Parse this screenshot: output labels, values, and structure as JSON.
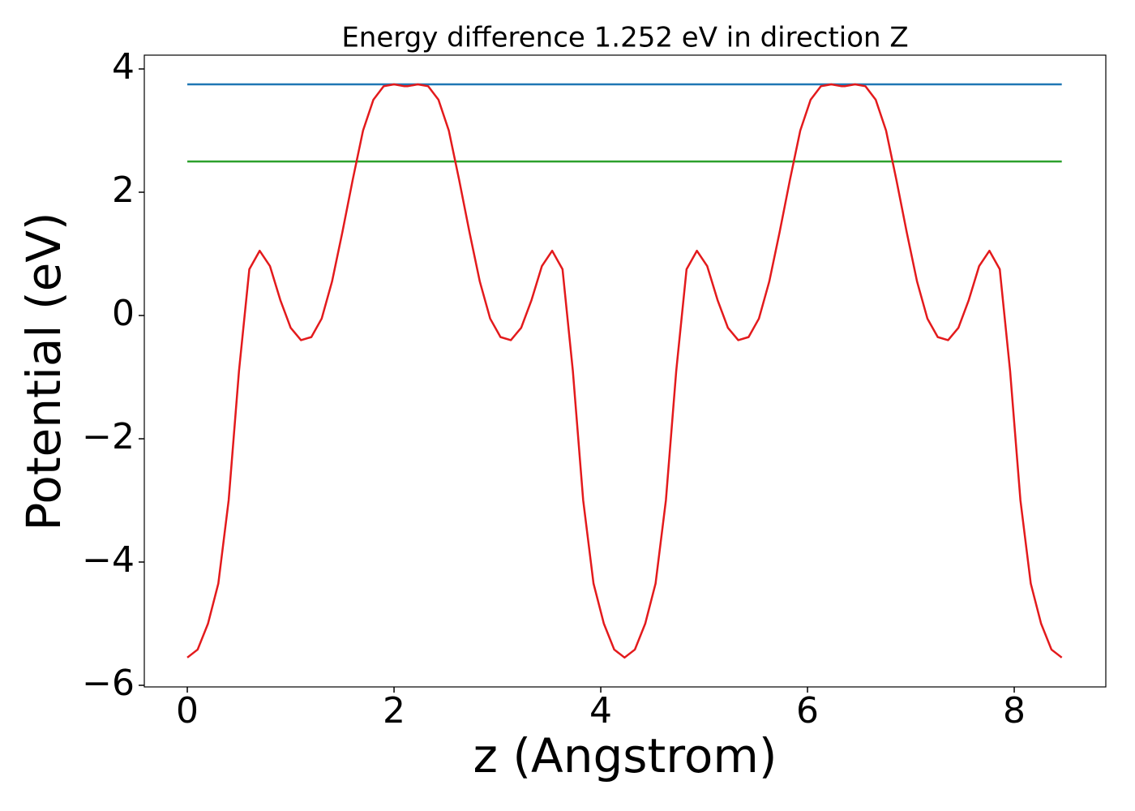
{
  "chart_data": {
    "type": "line",
    "title": "Energy difference 1.252 eV in direction Z",
    "xlabel": "z (Angstrom)",
    "ylabel": "Potential (eV)",
    "xlim": [
      -0.416,
      8.886
    ],
    "ylim": [
      -6.026,
      4.224
    ],
    "xticks": [
      0,
      2,
      4,
      6,
      8
    ],
    "yticks": [
      {
        "value": -6,
        "label": "−6"
      },
      {
        "value": -4,
        "label": "−4"
      },
      {
        "value": -2,
        "label": "−2"
      },
      0,
      2,
      4
    ],
    "series": [
      {
        "color": "#1f77b4",
        "x": [
          0,
          8.46
        ],
        "values": [
          3.75,
          3.75
        ]
      },
      {
        "color": "#2ca02c",
        "x": [
          0,
          8.46
        ],
        "values": [
          2.498,
          2.498
        ]
      },
      {
        "color": "#e31a1c",
        "x": [
          0,
          0.1,
          0.2,
          0.3,
          0.4,
          0.5,
          0.6,
          0.7,
          0.8,
          0.9,
          1.0,
          1.1,
          1.2,
          1.3,
          1.4,
          1.5,
          1.6,
          1.7,
          1.8,
          1.9,
          2.0,
          2.1,
          2.13,
          2.23,
          2.33,
          2.43,
          2.53,
          2.63,
          2.73,
          2.83,
          2.93,
          3.03,
          3.13,
          3.23,
          3.33,
          3.43,
          3.53,
          3.63,
          3.73,
          3.83,
          3.93,
          4.03,
          4.13,
          4.23,
          4.33,
          4.43,
          4.53,
          4.63,
          4.73,
          4.83,
          4.93,
          5.03,
          5.13,
          5.23,
          5.33,
          5.43,
          5.53,
          5.63,
          5.73,
          5.83,
          5.93,
          6.03,
          6.13,
          6.23,
          6.33,
          6.36,
          6.46,
          6.56,
          6.66,
          6.76,
          6.86,
          6.96,
          7.06,
          7.16,
          7.26,
          7.36,
          7.46,
          7.56,
          7.66,
          7.76,
          7.86,
          7.96,
          8.06,
          8.16,
          8.26,
          8.36,
          8.46
        ],
        "values": [
          -5.55,
          -5.42,
          -5.0,
          -4.35,
          -3.0,
          -0.9,
          0.75,
          1.05,
          0.8,
          0.25,
          -0.2,
          -0.4,
          -0.35,
          -0.05,
          0.55,
          1.35,
          2.2,
          3.0,
          3.5,
          3.72,
          3.75,
          3.72,
          3.72,
          3.75,
          3.72,
          3.5,
          3.0,
          2.2,
          1.35,
          0.55,
          -0.05,
          -0.35,
          -0.4,
          -0.2,
          0.25,
          0.8,
          1.05,
          0.75,
          -0.9,
          -3.0,
          -4.35,
          -5.0,
          -5.42,
          -5.55,
          -5.42,
          -5.0,
          -4.35,
          -3.0,
          -0.9,
          0.75,
          1.05,
          0.8,
          0.25,
          -0.2,
          -0.4,
          -0.35,
          -0.05,
          0.55,
          1.35,
          2.2,
          3.0,
          3.5,
          3.72,
          3.75,
          3.72,
          3.72,
          3.75,
          3.72,
          3.5,
          3.0,
          2.2,
          1.35,
          0.55,
          -0.05,
          -0.35,
          -0.4,
          -0.2,
          0.25,
          0.8,
          1.05,
          0.75,
          -0.9,
          -3.0,
          -4.35,
          -5.0,
          -5.42,
          -5.55
        ]
      }
    ]
  }
}
